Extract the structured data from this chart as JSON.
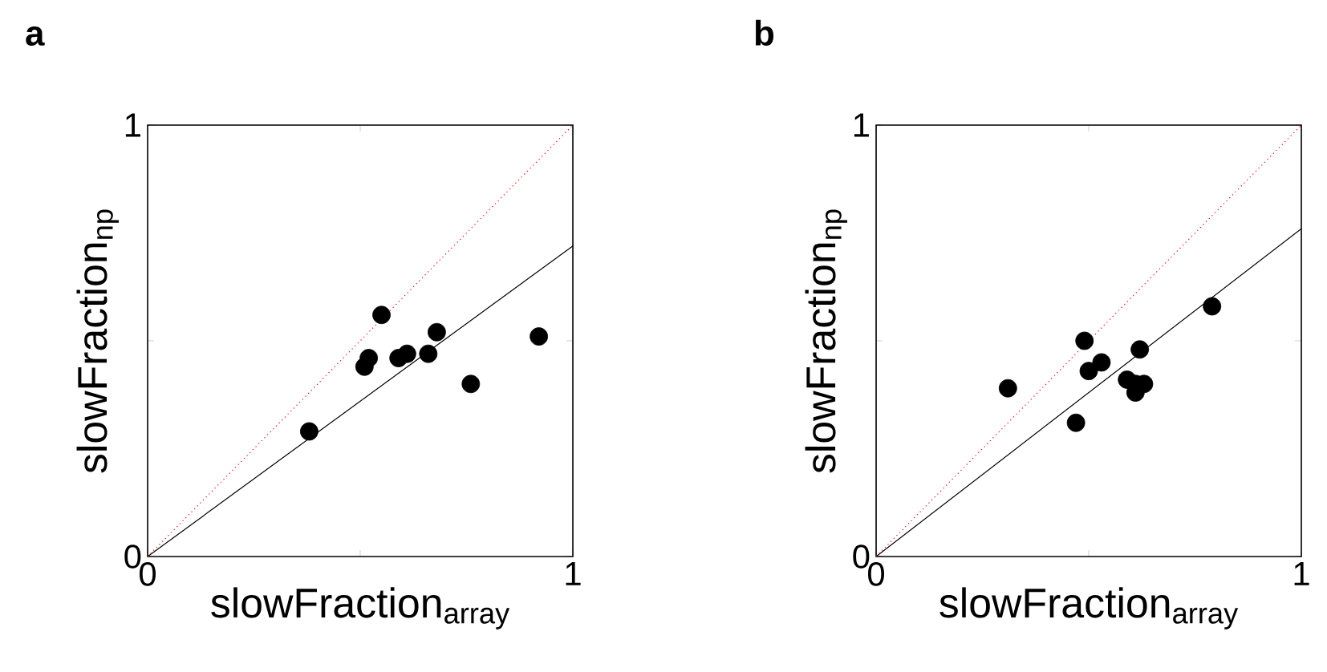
{
  "chart_data": [
    {
      "type": "scatter",
      "title": "a",
      "xlabel": "slowFraction$_{array}$",
      "ylabel": "slowFraction$_{np}$",
      "xlim": [
        0,
        1
      ],
      "ylim": [
        0,
        1
      ],
      "xticks": [
        0,
        {
          "value": 0.5,
          "label": null
        },
        1
      ],
      "yticks": [
        0,
        {
          "value": 0.5,
          "label": null
        },
        1
      ],
      "grid": false,
      "series": [
        {
          "type": "scatter",
          "color": "#000000",
          "marker": "circle",
          "x": [
            0.38,
            0.55,
            0.52,
            0.51,
            0.59,
            0.61,
            0.66,
            0.68,
            0.76,
            0.92
          ],
          "values": [
            0.29,
            0.56,
            0.46,
            0.44,
            0.46,
            0.47,
            0.47,
            0.52,
            0.4,
            0.51
          ]
        },
        {
          "type": "line",
          "color": "#000000",
          "marker": "none",
          "line_style": "solid",
          "x": [
            0,
            1
          ],
          "values": [
            0,
            0.72
          ]
        },
        {
          "type": "line",
          "color": "#ff0000",
          "marker": "none",
          "line_style": "dotted",
          "x": [
            0,
            1
          ],
          "values": [
            0,
            1
          ]
        }
      ]
    },
    {
      "type": "scatter",
      "title": "b",
      "xlabel": "slowFraction$_{array}$",
      "ylabel": "slowFraction$_{np}$",
      "xlim": [
        0,
        1
      ],
      "ylim": [
        0,
        1
      ],
      "xticks": [
        0,
        {
          "value": 0.5,
          "label": null
        },
        1
      ],
      "yticks": [
        0,
        {
          "value": 0.5,
          "label": null
        },
        1
      ],
      "grid": false,
      "series": [
        {
          "type": "scatter",
          "color": "#000000",
          "marker": "circle",
          "x": [
            0.31,
            0.47,
            0.49,
            0.5,
            0.53,
            0.62,
            0.59,
            0.61,
            0.63,
            0.61,
            0.79
          ],
          "values": [
            0.39,
            0.31,
            0.5,
            0.43,
            0.45,
            0.48,
            0.41,
            0.38,
            0.4,
            0.4,
            0.58
          ]
        },
        {
          "type": "line",
          "color": "#000000",
          "marker": "none",
          "line_style": "solid",
          "x": [
            0,
            1
          ],
          "values": [
            0,
            0.76
          ]
        },
        {
          "type": "line",
          "color": "#ff0000",
          "marker": "none",
          "line_style": "dotted",
          "x": [
            0,
            1
          ],
          "values": [
            0,
            1
          ]
        }
      ]
    }
  ]
}
